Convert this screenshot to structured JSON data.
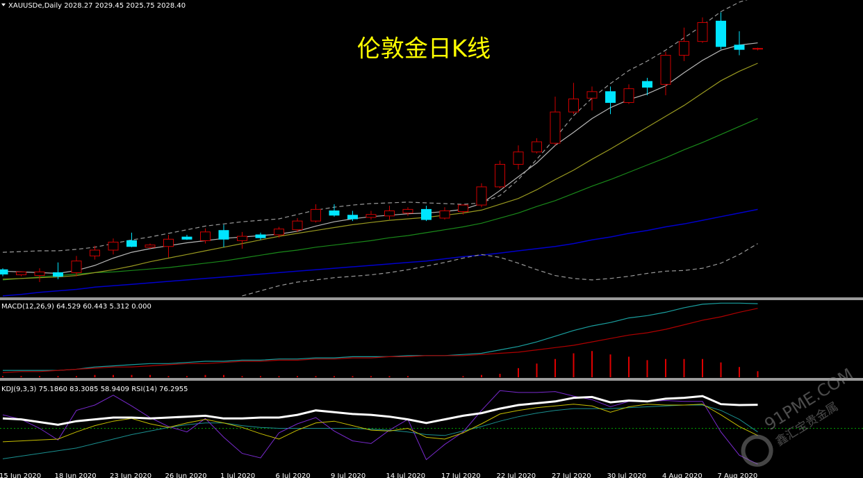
{
  "chart_data": [
    {
      "type": "candlestick",
      "title": "伦敦金日K线",
      "header": "XAUUSDe,Daily  2028.27 2029.45 2025.75 2028.40",
      "categories": [
        "15 Jun 2020",
        null,
        null,
        "18 Jun 2020",
        null,
        null,
        "23 Jun 2020",
        null,
        null,
        "26 Jun 2020",
        null,
        null,
        "1 Jul 2020",
        null,
        null,
        "6 Jul 2020",
        null,
        null,
        "9 Jul 2020",
        null,
        null,
        "14 Jul 2020",
        null,
        null,
        "17 Jul 2020",
        null,
        null,
        "22 Jul 2020",
        null,
        null,
        "27 Jul 2020",
        null,
        null,
        "30 Jul 2020",
        null,
        null,
        "4 Aug 2020",
        null,
        null,
        "7 Aug 2020",
        null,
        null
      ],
      "open": [
        1724,
        1717,
        1716,
        1720,
        1720,
        1743,
        1751,
        1764,
        1755,
        1756,
        1769,
        1764,
        1778,
        1764,
        1772,
        1772,
        1779,
        1791,
        1805,
        1799,
        1796,
        1798,
        1802,
        1807,
        1795,
        1804,
        1813,
        1838,
        1869,
        1886,
        1898,
        1941,
        1960,
        1969,
        1954,
        1983,
        1979,
        2019,
        2038,
        2066,
        2033,
        2028.27
      ],
      "high": [
        1726,
        1722,
        1726,
        1734,
        1743,
        1757,
        1767,
        1775,
        1760,
        1772,
        1772,
        1781,
        1786,
        1776,
        1775,
        1783,
        1795,
        1814,
        1814,
        1805,
        1805,
        1812,
        1810,
        1812,
        1810,
        1814,
        1843,
        1874,
        1895,
        1905,
        1962,
        1981,
        1976,
        1976,
        1979,
        1988,
        2024,
        2057,
        2071,
        2078,
        2052,
        2029.45
      ],
      "low": [
        1715,
        1715,
        1707,
        1711,
        1715,
        1738,
        1745,
        1755,
        1753,
        1741,
        1765,
        1760,
        1755,
        1753,
        1765,
        1768,
        1776,
        1789,
        1797,
        1791,
        1793,
        1793,
        1798,
        1791,
        1793,
        1800,
        1810,
        1836,
        1862,
        1884,
        1895,
        1938,
        1943,
        1938,
        1952,
        1964,
        1964,
        2011,
        2036,
        2027,
        2019,
        2025.75
      ],
      "close": [
        1718,
        1721,
        1721,
        1715,
        1736,
        1751,
        1762,
        1756,
        1758,
        1766,
        1766,
        1776,
        1766,
        1770,
        1768,
        1780,
        1791,
        1807,
        1799,
        1794,
        1800,
        1805,
        1807,
        1793,
        1805,
        1813,
        1838,
        1869,
        1886,
        1900,
        1941,
        1959,
        1969,
        1954,
        1973,
        1975,
        2019,
        2038,
        2064,
        2031,
        2027,
        2028.4
      ],
      "up_color": "#d00000",
      "down_color": "#00e5ff",
      "ylim": [
        1686,
        2095
      ],
      "series": [
        {
          "color": "#0000cc",
          "width": 1.5,
          "dashed": false,
          "values": [
            1688,
            1690,
            1693,
            1695,
            1697,
            1700,
            1702,
            1704,
            1706,
            1708,
            1710,
            1712,
            1714,
            1716,
            1718,
            1720,
            1722,
            1724,
            1726,
            1728,
            1730,
            1732,
            1734,
            1736,
            1739,
            1742,
            1744,
            1747,
            1750,
            1753,
            1756,
            1760,
            1765,
            1769,
            1774,
            1778,
            1783,
            1787,
            1792,
            1797,
            1802,
            1807
          ]
        },
        {
          "color": "#1a8a1a",
          "width": 1.2,
          "dashed": false,
          "values": [
            1710,
            1712,
            1714,
            1716,
            1718,
            1720,
            1721,
            1723,
            1725,
            1727,
            1730,
            1733,
            1736,
            1740,
            1744,
            1748,
            1751,
            1755,
            1758,
            1761,
            1764,
            1768,
            1771,
            1775,
            1779,
            1783,
            1788,
            1795,
            1802,
            1811,
            1819,
            1829,
            1839,
            1848,
            1858,
            1868,
            1878,
            1889,
            1899,
            1910,
            1921,
            1932
          ]
        },
        {
          "color": "#9a9a20",
          "width": 1.2,
          "dashed": false,
          "values": [
            1711,
            1712,
            1713,
            1714,
            1716,
            1720,
            1724,
            1729,
            1735,
            1740,
            1745,
            1750,
            1755,
            1760,
            1765,
            1770,
            1774,
            1778,
            1782,
            1786,
            1789,
            1792,
            1794,
            1796,
            1799,
            1802,
            1806,
            1814,
            1822,
            1834,
            1848,
            1861,
            1876,
            1890,
            1905,
            1920,
            1935,
            1950,
            1967,
            1984,
            1997,
            2008
          ]
        },
        {
          "color": "#b8b8b8",
          "width": 1.2,
          "dashed": false,
          "values": [
            1722,
            1721,
            1720,
            1719,
            1723,
            1730,
            1740,
            1748,
            1753,
            1757,
            1761,
            1764,
            1767,
            1769,
            1771,
            1773,
            1777,
            1784,
            1790,
            1794,
            1797,
            1799,
            1801,
            1802,
            1804,
            1807,
            1815,
            1833,
            1852,
            1871,
            1895,
            1913,
            1932,
            1947,
            1958,
            1966,
            1977,
            1995,
            2012,
            2026,
            2033,
            2036
          ]
        },
        {
          "color": "#9a9a9a",
          "width": 1.2,
          "dashed": true,
          "values": [
            1748,
            1749,
            1750,
            1750,
            1752,
            1755,
            1760,
            1765,
            1769,
            1774,
            1779,
            1784,
            1787,
            1790,
            1792,
            1794,
            1800,
            1806,
            1810,
            1813,
            1815,
            1816,
            1817,
            1816,
            1815,
            1814,
            1816,
            1826,
            1848,
            1876,
            1905,
            1936,
            1960,
            1980,
            1998,
            2011,
            2026,
            2043,
            2060,
            2079,
            2092,
            2100
          ]
        },
        {
          "color": "#9a9a9a",
          "width": 1.2,
          "dashed": true,
          "values": [
            null,
            null,
            null,
            null,
            null,
            null,
            null,
            null,
            null,
            null,
            null,
            null,
            null,
            1688,
            1695,
            1702,
            1707,
            1710,
            1713,
            1715,
            1717,
            1720,
            1724,
            1729,
            1734,
            1740,
            1745,
            1741,
            1733,
            1724,
            1716,
            1712,
            1710,
            1712,
            1715,
            1719,
            1722,
            1723,
            1726,
            1733,
            1745,
            1760
          ]
        }
      ]
    },
    {
      "type": "line",
      "header": "MACD(12,26,9) 64.529 60.443 5.312 0.000",
      "ylim": [
        0,
        67
      ],
      "series": [
        {
          "style": "bar",
          "color": "#e00000",
          "values": [
            1,
            1,
            1,
            1,
            1,
            2,
            2,
            2,
            2,
            1,
            1,
            2,
            2,
            1,
            1,
            1,
            1,
            1,
            1,
            1,
            1,
            1,
            1,
            0,
            0,
            1,
            2,
            3,
            8,
            12,
            16,
            21,
            23,
            20,
            18,
            15,
            16,
            16,
            16,
            13,
            9,
            5.312
          ]
        },
        {
          "style": "line",
          "color": "#1aa0a0",
          "width": 1.2,
          "values": [
            6,
            6,
            6,
            6,
            7,
            9,
            10,
            11,
            12,
            12,
            13,
            14,
            14,
            15,
            15,
            16,
            16,
            17,
            17,
            18,
            18,
            18,
            19,
            19,
            19,
            20,
            21,
            24,
            27,
            31,
            36,
            41,
            45,
            48,
            52,
            54,
            57,
            61,
            64,
            65,
            65,
            64.529
          ]
        },
        {
          "style": "line",
          "color": "#b00000",
          "width": 1.2,
          "values": [
            4,
            5,
            5,
            6,
            7,
            8,
            9,
            9,
            10,
            11,
            12,
            12,
            13,
            14,
            14,
            15,
            15,
            16,
            16,
            17,
            17,
            18,
            18,
            19,
            19,
            19,
            20,
            21,
            22,
            24,
            26,
            28,
            31,
            34,
            37,
            39,
            42,
            46,
            50,
            53,
            57,
            60.443
          ]
        }
      ]
    },
    {
      "type": "line",
      "header": "KDJ(9,3,3) 75.1860 83.3085 58.9409  RSI(14) 76.2955",
      "ylim": [
        0,
        100
      ],
      "hlines": [
        {
          "value": 50,
          "color": "#00a000"
        }
      ],
      "series": [
        {
          "style": "line",
          "color": "#1a9090",
          "width": 1,
          "values": [
            16,
            19,
            22,
            25,
            28,
            33,
            38,
            43,
            47,
            51,
            54,
            56,
            56,
            53,
            51,
            50,
            50,
            50,
            50,
            50,
            49,
            48,
            46,
            43,
            42,
            47,
            52,
            58,
            63,
            67,
            70,
            72,
            72,
            72,
            73,
            74,
            75,
            76,
            76,
            70,
            60,
            46
          ]
        },
        {
          "style": "line",
          "color": "#7a2ad0",
          "width": 1,
          "values": [
            65,
            60,
            50,
            37,
            70,
            76,
            87,
            75,
            62,
            52,
            46,
            61,
            40,
            22,
            17,
            45,
            55,
            62,
            47,
            36,
            33,
            48,
            60,
            15,
            32,
            46,
            70,
            92,
            90,
            90,
            91,
            86,
            82,
            74,
            80,
            80,
            81,
            80,
            80,
            46,
            20,
            10
          ]
        },
        {
          "style": "line",
          "color": "#c8c000",
          "width": 1,
          "values": [
            35,
            36,
            37,
            38,
            46,
            53,
            58,
            61,
            55,
            51,
            56,
            60,
            56,
            51,
            44,
            38,
            48,
            56,
            58,
            53,
            48,
            47,
            50,
            40,
            38,
            45,
            55,
            66,
            70,
            73,
            75,
            77,
            75,
            68,
            74,
            77,
            76,
            76,
            77,
            65,
            52,
            42
          ]
        },
        {
          "style": "line",
          "color": "#ffffff",
          "width": 3,
          "values": [
            61,
            60,
            57,
            54,
            58,
            60,
            62,
            62,
            61,
            62,
            63,
            64,
            61,
            61,
            62,
            62,
            65,
            70,
            68,
            66,
            65,
            63,
            60,
            56,
            60,
            64,
            67,
            72,
            76,
            78,
            80,
            84,
            85,
            79,
            81,
            80,
            83,
            84,
            86,
            77,
            76,
            76.3
          ]
        }
      ]
    }
  ],
  "watermark": {
    "text": "91PME.COM",
    "subtext": "鑫汇宝贵金属"
  }
}
